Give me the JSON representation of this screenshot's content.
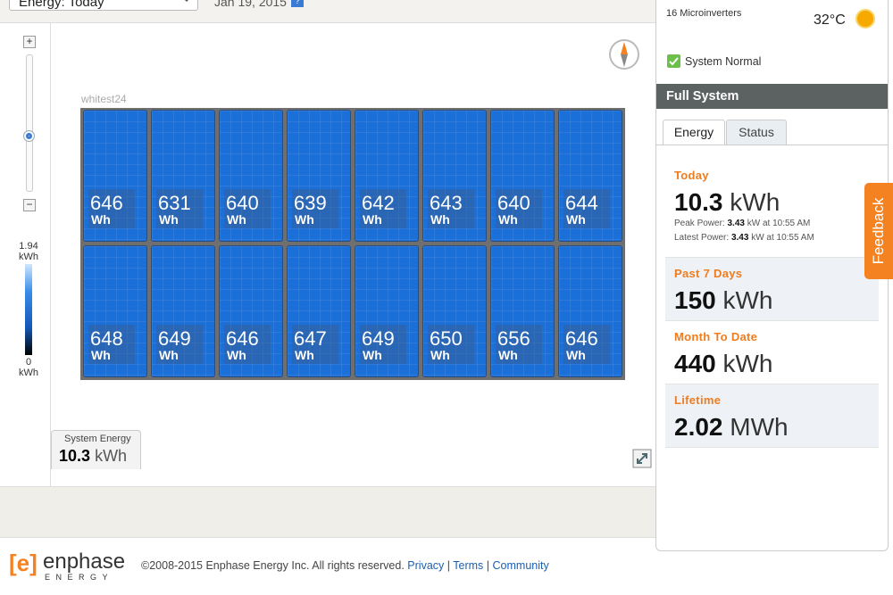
{
  "toolbar": {
    "view_select": "Energy: Today",
    "date": "Jan 19, 2015",
    "help": "?"
  },
  "zoom": {
    "in": "+",
    "out": "−"
  },
  "legend": {
    "max": "1.94",
    "max_unit": "kWh",
    "min": "0",
    "min_unit": "kWh"
  },
  "array": {
    "name": "whitest24",
    "unit": "Wh",
    "rows": [
      [
        646,
        631,
        640,
        639,
        642,
        643,
        640,
        644
      ],
      [
        648,
        649,
        646,
        647,
        649,
        650,
        656,
        646
      ]
    ]
  },
  "system_energy": {
    "label": "System Energy",
    "value": "10.3",
    "unit": "kWh"
  },
  "status_panel": {
    "microinverters": "16 Microinverters",
    "temperature": "32°C",
    "status": "System Normal",
    "header": "Full System",
    "tabs": [
      "Energy",
      "Status"
    ],
    "today": {
      "label": "Today",
      "value": "10.3",
      "unit": "kWh",
      "peak": {
        "label": "Peak Power:",
        "value": "3.43",
        "detail": "kW at 10:55 AM"
      },
      "latest": {
        "label": "Latest Power:",
        "value": "3.43",
        "detail": "kW at 10:55 AM"
      }
    },
    "periods": [
      {
        "label": "Past 7 Days",
        "value": "150",
        "unit": "kWh"
      },
      {
        "label": "Month To Date",
        "value": "440",
        "unit": "kWh"
      },
      {
        "label": "Lifetime",
        "value": "2.02",
        "unit": "MWh"
      }
    ]
  },
  "feedback": "Feedback",
  "footer": {
    "logo_mark": "[e]",
    "logo_name": "enphase",
    "logo_sub": "ENERGY",
    "copyright": "©2008-2015 Enphase Energy Inc. All rights reserved.",
    "separator": "|",
    "links": [
      "Privacy",
      "Terms",
      "Community"
    ]
  }
}
